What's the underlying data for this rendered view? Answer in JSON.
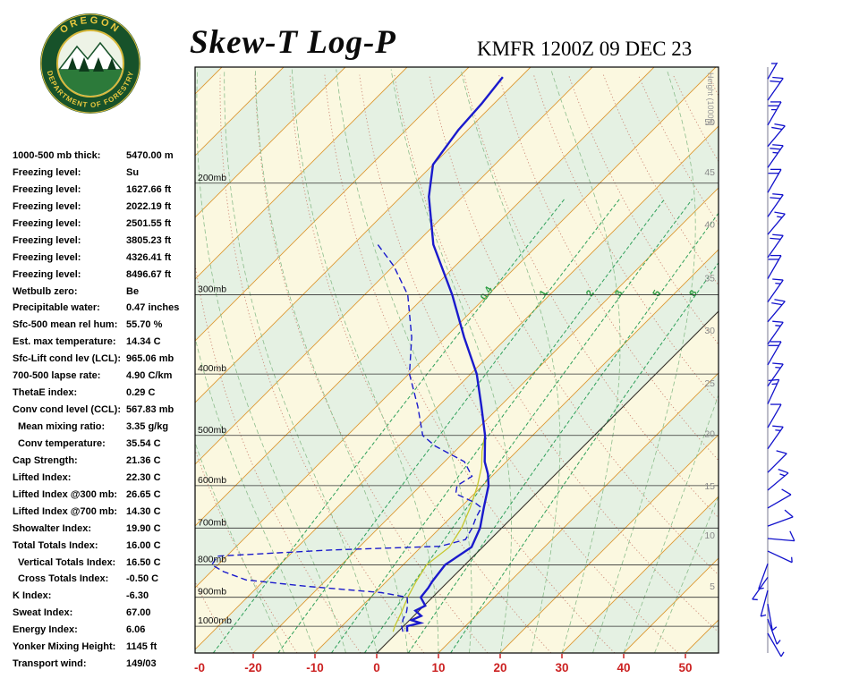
{
  "header": {
    "title": "Skew-T Log-P",
    "station": "KMFR 1200Z 09 DEC 23"
  },
  "logo": {
    "top_text": "OREGON",
    "bottom_text": "DEPARTMENT OF FORESTRY"
  },
  "stats": [
    {
      "label": "1000-500 mb thick:",
      "value": "5470.00 m",
      "indent": false
    },
    {
      "label": "Freezing level:",
      "value": "Su",
      "indent": false
    },
    {
      "label": "Freezing level:",
      "value": "1627.66 ft",
      "indent": false
    },
    {
      "label": "Freezing level:",
      "value": "2022.19 ft",
      "indent": false
    },
    {
      "label": "Freezing level:",
      "value": "2501.55 ft",
      "indent": false
    },
    {
      "label": "Freezing level:",
      "value": "3805.23 ft",
      "indent": false
    },
    {
      "label": "Freezing level:",
      "value": "4326.41 ft",
      "indent": false
    },
    {
      "label": "Freezing level:",
      "value": "8496.67 ft",
      "indent": false
    },
    {
      "label": "Wetbulb zero:",
      "value": "Be",
      "indent": false
    },
    {
      "label": "Precipitable water:",
      "value": "0.47 inches",
      "indent": false
    },
    {
      "label": "Sfc-500 mean rel hum:",
      "value": "55.70 %",
      "indent": false
    },
    {
      "label": "Est. max temperature:",
      "value": "14.34 C",
      "indent": false
    },
    {
      "label": "Sfc-Lift cond lev (LCL):",
      "value": "965.06 mb",
      "indent": false
    },
    {
      "label": "700-500 lapse rate:",
      "value": "4.90 C/km",
      "indent": false
    },
    {
      "label": "ThetaE index:",
      "value": "0.29 C",
      "indent": false
    },
    {
      "label": "Conv cond level (CCL):",
      "value": "567.83 mb",
      "indent": false
    },
    {
      "label": "Mean mixing ratio:",
      "value": "3.35 g/kg",
      "indent": true
    },
    {
      "label": "Conv temperature:",
      "value": "35.54 C",
      "indent": true
    },
    {
      "label": "Cap Strength:",
      "value": "21.36 C",
      "indent": false
    },
    {
      "label": "Lifted Index:",
      "value": "22.30 C",
      "indent": false
    },
    {
      "label": "Lifted Index @300 mb:",
      "value": "26.65 C",
      "indent": false
    },
    {
      "label": "Lifted Index @700 mb:",
      "value": "14.30 C",
      "indent": false
    },
    {
      "label": "Showalter Index:",
      "value": "19.90 C",
      "indent": false
    },
    {
      "label": "Total Totals Index:",
      "value": "16.00 C",
      "indent": false
    },
    {
      "label": "Vertical Totals Index:",
      "value": "16.50 C",
      "indent": true
    },
    {
      "label": "Cross Totals Index:",
      "value": "-0.50 C",
      "indent": true
    },
    {
      "label": "K Index:",
      "value": "-6.30",
      "indent": false
    },
    {
      "label": "Sweat Index:",
      "value": "67.00",
      "indent": false
    },
    {
      "label": "Energy Index:",
      "value": "6.06",
      "indent": false
    },
    {
      "label": "Yonker Mixing Height:",
      "value": "1145 ft",
      "indent": false
    },
    {
      "label": "Transport wind:",
      "value": "149/03",
      "indent": false
    }
  ],
  "chart_data": {
    "type": "line",
    "title": "Skew-T Log-P sounding",
    "station": "KMFR 1200Z 09 DEC 23",
    "x_axis": {
      "units": "C",
      "label_color": "#cc2222",
      "ticks": [
        {
          "label": "-0",
          "t": -30
        },
        {
          "label": "-20",
          "t": -20
        },
        {
          "label": "-10",
          "t": -10
        },
        {
          "label": "0",
          "t": 0
        },
        {
          "label": "10",
          "t": 10
        },
        {
          "label": "20",
          "t": 20
        },
        {
          "label": "30",
          "t": 30
        },
        {
          "label": "40",
          "t": 40
        },
        {
          "label": "50",
          "t": 50
        }
      ]
    },
    "pressure_labels": [
      {
        "label": "200mb",
        "p": 200
      },
      {
        "label": "300mb",
        "p": 300
      },
      {
        "label": "400mb",
        "p": 400
      },
      {
        "label": "500mb",
        "p": 500
      },
      {
        "label": "600mb",
        "p": 600
      },
      {
        "label": "700mb",
        "p": 700
      },
      {
        "label": "800mb",
        "p": 800
      },
      {
        "label": "900mb",
        "p": 900
      },
      {
        "label": "1000mb",
        "p": 1000
      }
    ],
    "height_axis": {
      "title": "Height (1000ft)",
      "ticks": [
        {
          "label": "50",
          "p": 160
        },
        {
          "label": "45",
          "p": 192
        },
        {
          "label": "40",
          "p": 232
        },
        {
          "label": "35",
          "p": 282
        },
        {
          "label": "30",
          "p": 341
        },
        {
          "label": "25",
          "p": 413
        },
        {
          "label": "20",
          "p": 496
        },
        {
          "label": "15",
          "p": 600
        },
        {
          "label": "10",
          "p": 718
        },
        {
          "label": "5",
          "p": 864
        }
      ]
    },
    "mixing_ratio_lines": [
      0.4,
      1,
      2,
      3,
      5,
      8
    ],
    "series": [
      {
        "name": "temperature",
        "style": "solid",
        "color": "#1a1acc",
        "points": [
          [
            1020,
            1.5
          ],
          [
            1000,
            0.6
          ],
          [
            988,
            2.2
          ],
          [
            978,
            0.3
          ],
          [
            963,
            1.2
          ],
          [
            945,
            -0.6
          ],
          [
            928,
            0.2
          ],
          [
            900,
            -1.9
          ],
          [
            870,
            -2.2
          ],
          [
            850,
            -2.6
          ],
          [
            800,
            -3.2
          ],
          [
            750,
            -1.8
          ],
          [
            700,
            -3.5
          ],
          [
            650,
            -6.2
          ],
          [
            600,
            -9.0
          ],
          [
            575,
            -11.0
          ],
          [
            550,
            -13.5
          ],
          [
            500,
            -17.7
          ],
          [
            450,
            -23.0
          ],
          [
            400,
            -29.0
          ],
          [
            350,
            -37.0
          ],
          [
            300,
            -45.8
          ],
          [
            250,
            -57.0
          ],
          [
            210,
            -65.5
          ],
          [
            187,
            -70.0
          ],
          [
            165,
            -71.5
          ],
          [
            150,
            -72.0
          ],
          [
            136,
            -72.9
          ]
        ]
      },
      {
        "name": "dewpoint",
        "style": "dashed",
        "color": "#1a1acc",
        "points": [
          [
            1020,
            0.8
          ],
          [
            1000,
            -0.3
          ],
          [
            975,
            -1.2
          ],
          [
            950,
            -1.8
          ],
          [
            925,
            -2.8
          ],
          [
            900,
            -4.1
          ],
          [
            885,
            -9.0
          ],
          [
            865,
            -22.0
          ],
          [
            845,
            -33.0
          ],
          [
            820,
            -38.0
          ],
          [
            800,
            -41.0
          ],
          [
            775,
            -41.5
          ],
          [
            758,
            -24.0
          ],
          [
            748,
            -7.0
          ],
          [
            730,
            -4.0
          ],
          [
            700,
            -4.8
          ],
          [
            675,
            -5.8
          ],
          [
            650,
            -6.6
          ],
          [
            638,
            -8.5
          ],
          [
            618,
            -13.0
          ],
          [
            600,
            -14.1
          ],
          [
            580,
            -13.2
          ],
          [
            550,
            -16.8
          ],
          [
            520,
            -24.0
          ],
          [
            500,
            -27.8
          ],
          [
            450,
            -33.3
          ],
          [
            400,
            -39.9
          ],
          [
            350,
            -45.5
          ],
          [
            300,
            -53.0
          ],
          [
            270,
            -60.0
          ],
          [
            250,
            -66.0
          ]
        ]
      },
      {
        "name": "parcel",
        "style": "solid",
        "color": "#c6c62e",
        "points": [
          [
            1020,
            -0.8
          ],
          [
            1000,
            -1.4
          ],
          [
            950,
            -2.6
          ],
          [
            900,
            -4.0
          ],
          [
            850,
            -5.2
          ],
          [
            800,
            -6.2
          ],
          [
            750,
            -5.4
          ],
          [
            700,
            -6.5
          ],
          [
            650,
            -8.4
          ],
          [
            600,
            -10.8
          ],
          [
            560,
            -13.2
          ],
          [
            530,
            -15.6
          ],
          [
            505,
            -17.4
          ]
        ]
      }
    ],
    "winds": [
      {
        "p": 137,
        "dir": 30,
        "spd": 25
      },
      {
        "p": 148,
        "dir": 35,
        "spd": 20
      },
      {
        "p": 162,
        "dir": 30,
        "spd": 25
      },
      {
        "p": 175,
        "dir": 40,
        "spd": 20
      },
      {
        "p": 189,
        "dir": 35,
        "spd": 25
      },
      {
        "p": 207,
        "dir": 30,
        "spd": 20
      },
      {
        "p": 226,
        "dir": 35,
        "spd": 20
      },
      {
        "p": 241,
        "dir": 40,
        "spd": 15
      },
      {
        "p": 262,
        "dir": 35,
        "spd": 20
      },
      {
        "p": 283,
        "dir": 30,
        "spd": 20
      },
      {
        "p": 308,
        "dir": 35,
        "spd": 15
      },
      {
        "p": 331,
        "dir": 40,
        "spd": 20
      },
      {
        "p": 359,
        "dir": 35,
        "spd": 15
      },
      {
        "p": 387,
        "dir": 30,
        "spd": 20
      },
      {
        "p": 418,
        "dir": 35,
        "spd": 15
      },
      {
        "p": 446,
        "dir": 25,
        "spd": 15
      },
      {
        "p": 486,
        "dir": 30,
        "spd": 10
      },
      {
        "p": 525,
        "dir": 35,
        "spd": 15
      },
      {
        "p": 572,
        "dir": 45,
        "spd": 10
      },
      {
        "p": 610,
        "dir": 50,
        "spd": 15
      },
      {
        "p": 651,
        "dir": 60,
        "spd": 10
      },
      {
        "p": 695,
        "dir": 70,
        "spd": 10
      },
      {
        "p": 727,
        "dir": 95,
        "spd": 10
      },
      {
        "p": 761,
        "dir": 115,
        "spd": 5
      },
      {
        "p": 797,
        "dir": 200,
        "spd": 5
      },
      {
        "p": 837,
        "dir": 215,
        "spd": 5
      },
      {
        "p": 878,
        "dir": 195,
        "spd": 5
      },
      {
        "p": 922,
        "dir": 170,
        "spd": 5
      },
      {
        "p": 974,
        "dir": 160,
        "spd": 5
      },
      {
        "p": 1026,
        "dir": 150,
        "spd": 3
      }
    ]
  }
}
